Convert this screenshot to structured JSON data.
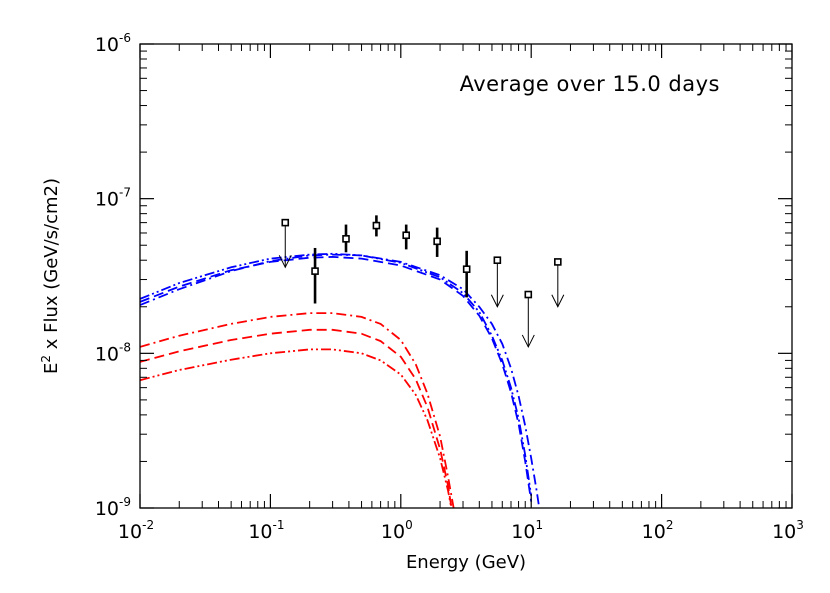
{
  "chart_data": {
    "type": "line",
    "xscale": "log",
    "yscale": "log",
    "xlim": [
      0.01,
      1000
    ],
    "ylim": [
      1e-09,
      1e-06
    ],
    "xlabel": "Energy (GeV)",
    "ylabel_main": "E",
    "ylabel_sup": "2",
    "ylabel_rest": " x Flux (GeV/s/cm2)",
    "annotation": "Average over 15.0 days",
    "grid": false,
    "x_ticks": [
      {
        "base": "10",
        "exp": "-2",
        "value": 0.01
      },
      {
        "base": "10",
        "exp": "-1",
        "value": 0.1
      },
      {
        "base": "10",
        "exp": "0",
        "value": 1
      },
      {
        "base": "10",
        "exp": "1",
        "value": 10
      },
      {
        "base": "10",
        "exp": "2",
        "value": 100
      },
      {
        "base": "10",
        "exp": "3",
        "value": 1000
      }
    ],
    "y_ticks": [
      {
        "base": "10",
        "exp": "-9",
        "value": 1e-09
      },
      {
        "base": "10",
        "exp": "-8",
        "value": 1e-08
      },
      {
        "base": "10",
        "exp": "-7",
        "value": 1e-07
      },
      {
        "base": "10",
        "exp": "-6",
        "value": 1e-06
      }
    ],
    "data_points": [
      {
        "x": 0.38,
        "y": 5.5e-08,
        "ylo": 4.5e-08,
        "yhi": 6.8e-08
      },
      {
        "x": 0.65,
        "y": 6.7e-08,
        "ylo": 5.7e-08,
        "yhi": 7.8e-08
      },
      {
        "x": 1.1,
        "y": 5.8e-08,
        "ylo": 4.7e-08,
        "yhi": 6.8e-08
      },
      {
        "x": 1.9,
        "y": 5.3e-08,
        "ylo": 4.2e-08,
        "yhi": 6.5e-08
      },
      {
        "x": 0.22,
        "y": 3.4e-08,
        "ylo": 2.1e-08,
        "yhi": 4.8e-08
      },
      {
        "x": 3.2,
        "y": 3.5e-08,
        "ylo": 2.3e-08,
        "yhi": 4.6e-08
      }
    ],
    "upper_limits": [
      {
        "x": 0.13,
        "y": 7e-08,
        "ylow": 3.6e-08
      },
      {
        "x": 5.5,
        "y": 4e-08,
        "ylow": 2e-08
      },
      {
        "x": 9.5,
        "y": 2.4e-08,
        "ylow": 1.1e-08
      },
      {
        "x": 16.0,
        "y": 3.9e-08,
        "ylow": 2e-08
      }
    ],
    "series": [
      {
        "color": "#0000ff",
        "dash": "dashdot",
        "x": [
          0.01,
          0.02,
          0.05,
          0.1,
          0.2,
          0.3,
          0.5,
          1,
          2,
          3,
          4,
          5,
          6,
          7,
          8,
          9,
          10,
          11,
          12
        ],
        "y": [
          2.05e-08,
          2.6e-08,
          3.4e-08,
          3.95e-08,
          4.3e-08,
          4.35e-08,
          4.3e-08,
          3.9e-08,
          3.2e-08,
          2.6e-08,
          2e-08,
          1.55e-08,
          1.15e-08,
          8e-09,
          5.3e-09,
          3.4e-09,
          2.1e-09,
          1.3e-09,
          8e-10
        ]
      },
      {
        "color": "#0000ff",
        "dash": "dashed",
        "x": [
          0.01,
          0.02,
          0.05,
          0.1,
          0.2,
          0.3,
          0.5,
          1,
          2,
          3,
          4,
          5,
          6,
          7,
          8,
          9,
          10
        ],
        "y": [
          2.15e-08,
          2.7e-08,
          3.45e-08,
          3.9e-08,
          4.15e-08,
          4.2e-08,
          4.1e-08,
          3.7e-08,
          3e-08,
          2.35e-08,
          1.75e-08,
          1.25e-08,
          8.5e-09,
          5.6e-09,
          3.5e-09,
          2e-09,
          1.1e-09
        ]
      },
      {
        "color": "#0000ff",
        "dash": "dashdotdot",
        "x": [
          0.01,
          0.02,
          0.05,
          0.1,
          0.2,
          0.3,
          0.5,
          1,
          2,
          3,
          4,
          5,
          6,
          7,
          8,
          9,
          10
        ],
        "y": [
          2.25e-08,
          2.85e-08,
          3.6e-08,
          4.1e-08,
          4.35e-08,
          4.4e-08,
          4.3e-08,
          3.85e-08,
          3.1e-08,
          2.45e-08,
          1.85e-08,
          1.3e-08,
          9e-09,
          6e-09,
          3.8e-09,
          2.2e-09,
          1.2e-09
        ]
      },
      {
        "color": "#ff0000",
        "dash": "dashdot",
        "x": [
          0.01,
          0.02,
          0.05,
          0.1,
          0.2,
          0.3,
          0.5,
          0.7,
          1,
          1.3,
          1.6,
          2.0,
          2.3,
          2.6
        ],
        "y": [
          1.1e-08,
          1.3e-08,
          1.55e-08,
          1.72e-08,
          1.82e-08,
          1.82e-08,
          1.72e-08,
          1.55e-08,
          1.22e-08,
          8.5e-09,
          5.5e-09,
          2.9e-09,
          1.6e-09,
          9e-10
        ]
      },
      {
        "color": "#ff0000",
        "dash": "dashed",
        "x": [
          0.01,
          0.02,
          0.05,
          0.1,
          0.2,
          0.3,
          0.5,
          0.7,
          1,
          1.3,
          1.6,
          2.0,
          2.3,
          2.5
        ],
        "y": [
          8.8e-09,
          1.03e-08,
          1.22e-08,
          1.34e-08,
          1.42e-08,
          1.42e-08,
          1.34e-08,
          1.2e-08,
          9.5e-09,
          6.8e-09,
          4.5e-09,
          2.4e-09,
          1.4e-09,
          9e-10
        ]
      },
      {
        "color": "#ff0000",
        "dash": "dashdotdot",
        "x": [
          0.01,
          0.02,
          0.05,
          0.1,
          0.2,
          0.3,
          0.5,
          0.7,
          1,
          1.3,
          1.6,
          2.0,
          2.3,
          2.5
        ],
        "y": [
          6.7e-09,
          7.8e-09,
          9.1e-09,
          1e-08,
          1.06e-08,
          1.06e-08,
          1e-08,
          9e-09,
          7.3e-09,
          5.4e-09,
          3.7e-09,
          2.1e-09,
          1.3e-09,
          9e-10
        ]
      }
    ]
  }
}
